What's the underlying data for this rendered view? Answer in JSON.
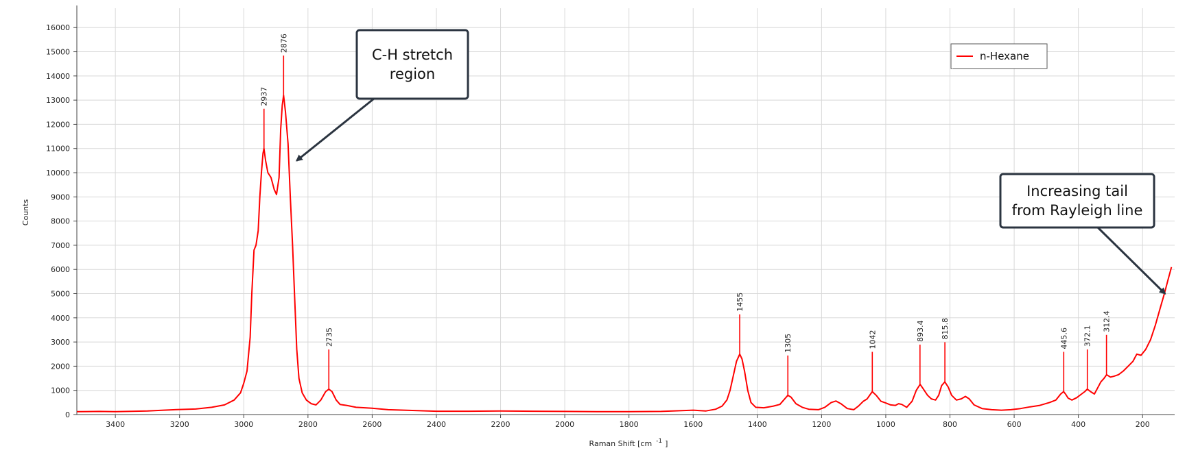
{
  "chart_data": {
    "type": "line",
    "xlabel": "Raman Shift [cm",
    "xlabel_sup": "-1",
    "xlabel_end": "]",
    "ylabel": "Counts",
    "x_reversed": true,
    "xlim": [
      3520,
      100
    ],
    "ylim": [
      0,
      16800
    ],
    "grid": true,
    "x_ticks": [
      3400,
      3200,
      3000,
      2800,
      2600,
      2400,
      2200,
      2000,
      1800,
      1600,
      1400,
      1200,
      1000,
      800,
      600,
      400,
      200
    ],
    "y_ticks": [
      0,
      1000,
      2000,
      3000,
      4000,
      5000,
      6000,
      7000,
      8000,
      9000,
      10000,
      11000,
      12000,
      13000,
      14000,
      15000,
      16000
    ],
    "legend": {
      "entries": [
        "n-Hexane"
      ],
      "placement": "top-right"
    },
    "series": [
      {
        "name": "n-Hexane",
        "color": "#ff0000",
        "points": [
          [
            3520,
            120
          ],
          [
            3450,
            130
          ],
          [
            3400,
            120
          ],
          [
            3300,
            150
          ],
          [
            3250,
            180
          ],
          [
            3200,
            210
          ],
          [
            3150,
            230
          ],
          [
            3100,
            300
          ],
          [
            3060,
            400
          ],
          [
            3030,
            600
          ],
          [
            3010,
            900
          ],
          [
            3000,
            1300
          ],
          [
            2990,
            1800
          ],
          [
            2980,
            3200
          ],
          [
            2975,
            5000
          ],
          [
            2968,
            6800
          ],
          [
            2962,
            7000
          ],
          [
            2955,
            7600
          ],
          [
            2950,
            9000
          ],
          [
            2945,
            10000
          ],
          [
            2940,
            10800
          ],
          [
            2937,
            11000
          ],
          [
            2932,
            10500
          ],
          [
            2925,
            10000
          ],
          [
            2915,
            9800
          ],
          [
            2905,
            9300
          ],
          [
            2898,
            9100
          ],
          [
            2890,
            9800
          ],
          [
            2885,
            11800
          ],
          [
            2880,
            12800
          ],
          [
            2876,
            13200
          ],
          [
            2870,
            12500
          ],
          [
            2862,
            11200
          ],
          [
            2855,
            9000
          ],
          [
            2848,
            7000
          ],
          [
            2842,
            5000
          ],
          [
            2835,
            2700
          ],
          [
            2828,
            1500
          ],
          [
            2818,
            900
          ],
          [
            2805,
            600
          ],
          [
            2790,
            450
          ],
          [
            2775,
            400
          ],
          [
            2760,
            600
          ],
          [
            2745,
            950
          ],
          [
            2735,
            1050
          ],
          [
            2725,
            950
          ],
          [
            2712,
            600
          ],
          [
            2700,
            420
          ],
          [
            2680,
            380
          ],
          [
            2650,
            300
          ],
          [
            2600,
            260
          ],
          [
            2550,
            200
          ],
          [
            2500,
            180
          ],
          [
            2450,
            160
          ],
          [
            2400,
            140
          ],
          [
            2300,
            140
          ],
          [
            2200,
            150
          ],
          [
            2100,
            140
          ],
          [
            2000,
            130
          ],
          [
            1900,
            120
          ],
          [
            1800,
            120
          ],
          [
            1700,
            130
          ],
          [
            1600,
            180
          ],
          [
            1560,
            150
          ],
          [
            1530,
            220
          ],
          [
            1510,
            350
          ],
          [
            1495,
            600
          ],
          [
            1485,
            1000
          ],
          [
            1475,
            1600
          ],
          [
            1465,
            2200
          ],
          [
            1455,
            2500
          ],
          [
            1448,
            2300
          ],
          [
            1440,
            1800
          ],
          [
            1430,
            1000
          ],
          [
            1420,
            500
          ],
          [
            1405,
            300
          ],
          [
            1380,
            280
          ],
          [
            1350,
            350
          ],
          [
            1330,
            420
          ],
          [
            1318,
            600
          ],
          [
            1305,
            800
          ],
          [
            1295,
            720
          ],
          [
            1280,
            450
          ],
          [
            1260,
            300
          ],
          [
            1240,
            220
          ],
          [
            1210,
            200
          ],
          [
            1190,
            300
          ],
          [
            1170,
            500
          ],
          [
            1155,
            560
          ],
          [
            1140,
            450
          ],
          [
            1120,
            250
          ],
          [
            1100,
            200
          ],
          [
            1085,
            350
          ],
          [
            1070,
            550
          ],
          [
            1058,
            650
          ],
          [
            1042,
            950
          ],
          [
            1030,
            800
          ],
          [
            1015,
            550
          ],
          [
            1000,
            480
          ],
          [
            985,
            400
          ],
          [
            970,
            380
          ],
          [
            960,
            450
          ],
          [
            950,
            420
          ],
          [
            935,
            300
          ],
          [
            918,
            550
          ],
          [
            905,
            1000
          ],
          [
            893,
            1250
          ],
          [
            885,
            1100
          ],
          [
            870,
            800
          ],
          [
            858,
            650
          ],
          [
            845,
            600
          ],
          [
            835,
            800
          ],
          [
            826,
            1200
          ],
          [
            816,
            1350
          ],
          [
            806,
            1150
          ],
          [
            795,
            800
          ],
          [
            780,
            600
          ],
          [
            765,
            650
          ],
          [
            752,
            750
          ],
          [
            740,
            650
          ],
          [
            725,
            400
          ],
          [
            700,
            250
          ],
          [
            670,
            200
          ],
          [
            640,
            180
          ],
          [
            610,
            200
          ],
          [
            580,
            250
          ],
          [
            550,
            320
          ],
          [
            520,
            380
          ],
          [
            490,
            500
          ],
          [
            470,
            600
          ],
          [
            455,
            850
          ],
          [
            446,
            950
          ],
          [
            440,
            850
          ],
          [
            432,
            680
          ],
          [
            420,
            600
          ],
          [
            405,
            700
          ],
          [
            390,
            850
          ],
          [
            380,
            950
          ],
          [
            372,
            1050
          ],
          [
            362,
            950
          ],
          [
            350,
            850
          ],
          [
            340,
            1100
          ],
          [
            330,
            1350
          ],
          [
            320,
            1500
          ],
          [
            312,
            1650
          ],
          [
            300,
            1550
          ],
          [
            290,
            1580
          ],
          [
            275,
            1650
          ],
          [
            260,
            1800
          ],
          [
            245,
            2000
          ],
          [
            230,
            2200
          ],
          [
            218,
            2500
          ],
          [
            205,
            2450
          ],
          [
            190,
            2700
          ],
          [
            175,
            3100
          ],
          [
            160,
            3700
          ],
          [
            145,
            4400
          ],
          [
            132,
            5000
          ],
          [
            120,
            5600
          ],
          [
            112,
            6000
          ],
          [
            110,
            6100
          ]
        ]
      }
    ],
    "peak_labels": [
      {
        "x": 2937,
        "y": 11000,
        "label": "2937"
      },
      {
        "x": 2876,
        "y": 13200,
        "label": "2876"
      },
      {
        "x": 2735,
        "y": 1050,
        "label": "2735"
      },
      {
        "x": 1455,
        "y": 2500,
        "label": "1455"
      },
      {
        "x": 1305,
        "y": 800,
        "label": "1305"
      },
      {
        "x": 1042,
        "y": 950,
        "label": "1042"
      },
      {
        "x": 893.4,
        "y": 1250,
        "label": "893.4"
      },
      {
        "x": 815.8,
        "y": 1350,
        "label": "815.8"
      },
      {
        "x": 445.6,
        "y": 950,
        "label": "445.6"
      },
      {
        "x": 372.1,
        "y": 1050,
        "label": "372.1"
      },
      {
        "x": 312.4,
        "y": 1650,
        "label": "312.4"
      }
    ],
    "annotations": [
      {
        "lines": [
          "C-H stretch",
          "region"
        ],
        "target": [
          2835,
          10500
        ]
      },
      {
        "lines": [
          "Increasing tail",
          "from Rayleigh line"
        ],
        "target": [
          130,
          5000
        ]
      }
    ]
  }
}
